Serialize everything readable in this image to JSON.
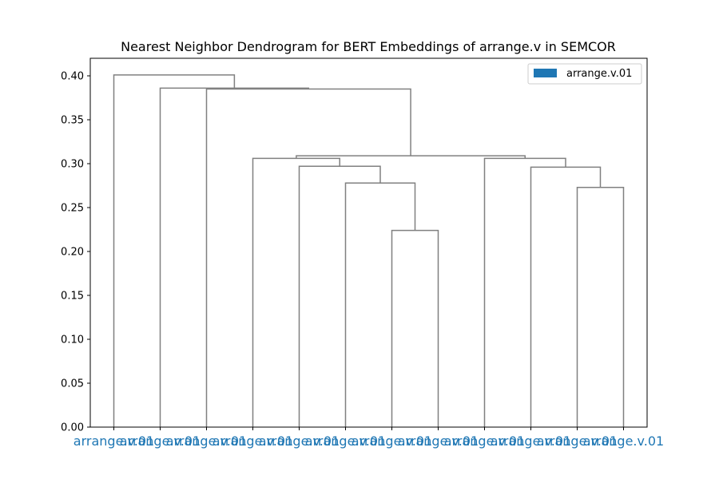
{
  "chart_data": {
    "type": "dendrogram",
    "title": "Nearest Neighbor Dendrogram for BERT Embeddings of arrange.v in SEMCOR",
    "xlabel": "",
    "ylabel": "",
    "ylim": [
      0,
      0.42
    ],
    "yticks": [
      "0.00",
      "0.05",
      "0.10",
      "0.15",
      "0.20",
      "0.25",
      "0.30",
      "0.35",
      "0.40"
    ],
    "grid": false,
    "legend": {
      "placement": "top-right",
      "entries": [
        {
          "label": "arrange.v.01",
          "color": "#1f77b4"
        }
      ]
    },
    "leaf_color": "#1f77b4",
    "link_color": "#808080",
    "leaves": [
      "arrange.v.01",
      "arrange.v.01",
      "arrange.v.01",
      "arrange.v.01",
      "arrange.v.01",
      "arrange.v.01",
      "arrange.v.01",
      "arrange.v.01",
      "arrange.v.01",
      "arrange.v.01",
      "arrange.v.01",
      "arrange.v.01"
    ],
    "merges": [
      {
        "left": 6,
        "right": 7,
        "height": 0.224
      },
      {
        "left": 5,
        "right": 12,
        "height": 0.278
      },
      {
        "left": 4,
        "right": 13,
        "height": 0.297
      },
      {
        "left": 3,
        "right": 14,
        "height": 0.306
      },
      {
        "left": 10,
        "right": 11,
        "height": 0.273
      },
      {
        "left": 9,
        "right": 16,
        "height": 0.296
      },
      {
        "left": 8,
        "right": 17,
        "height": 0.306
      },
      {
        "left": 15,
        "right": 18,
        "height": 0.309
      },
      {
        "left": 2,
        "right": 19,
        "height": 0.385
      },
      {
        "left": 1,
        "right": 20,
        "height": 0.386
      },
      {
        "left": 0,
        "right": 21,
        "height": 0.401
      }
    ]
  }
}
